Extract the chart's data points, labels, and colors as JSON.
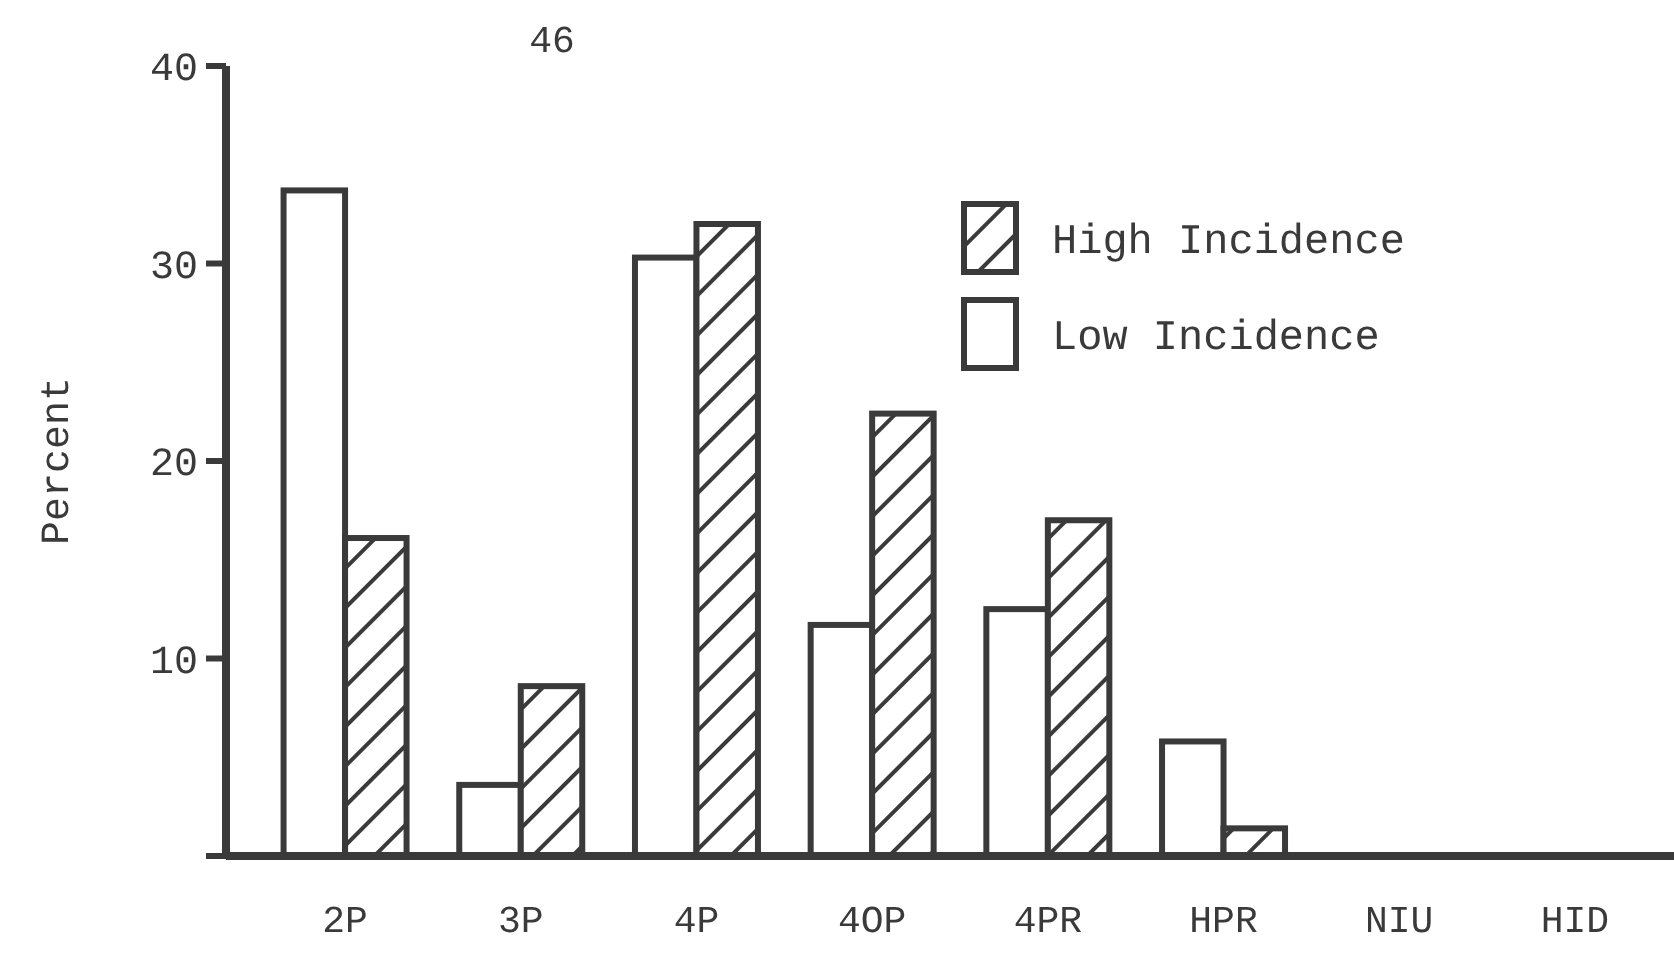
{
  "chart_data": {
    "type": "bar",
    "ylabel": "Percent",
    "annotations": [
      "46"
    ],
    "categories": [
      "2P",
      "3P",
      "4P",
      "4OP",
      "4PR",
      "HPR",
      "NIU",
      "HID"
    ],
    "series": [
      {
        "name": "Low Incidence",
        "color": "#ffffff",
        "values": [
          33.7,
          3.6,
          30.3,
          11.7,
          12.5,
          5.8,
          0,
          0
        ]
      },
      {
        "name": "High Incidence",
        "color": "#3a3a3a",
        "values": [
          16.1,
          8.6,
          32,
          22.4,
          17,
          1.4,
          0,
          0
        ]
      }
    ],
    "ylim": [
      0,
      40
    ],
    "yticks": [
      {
        "value": 0,
        "label": null
      },
      10,
      20,
      30,
      40
    ],
    "grid": false,
    "legend": "top right"
  }
}
